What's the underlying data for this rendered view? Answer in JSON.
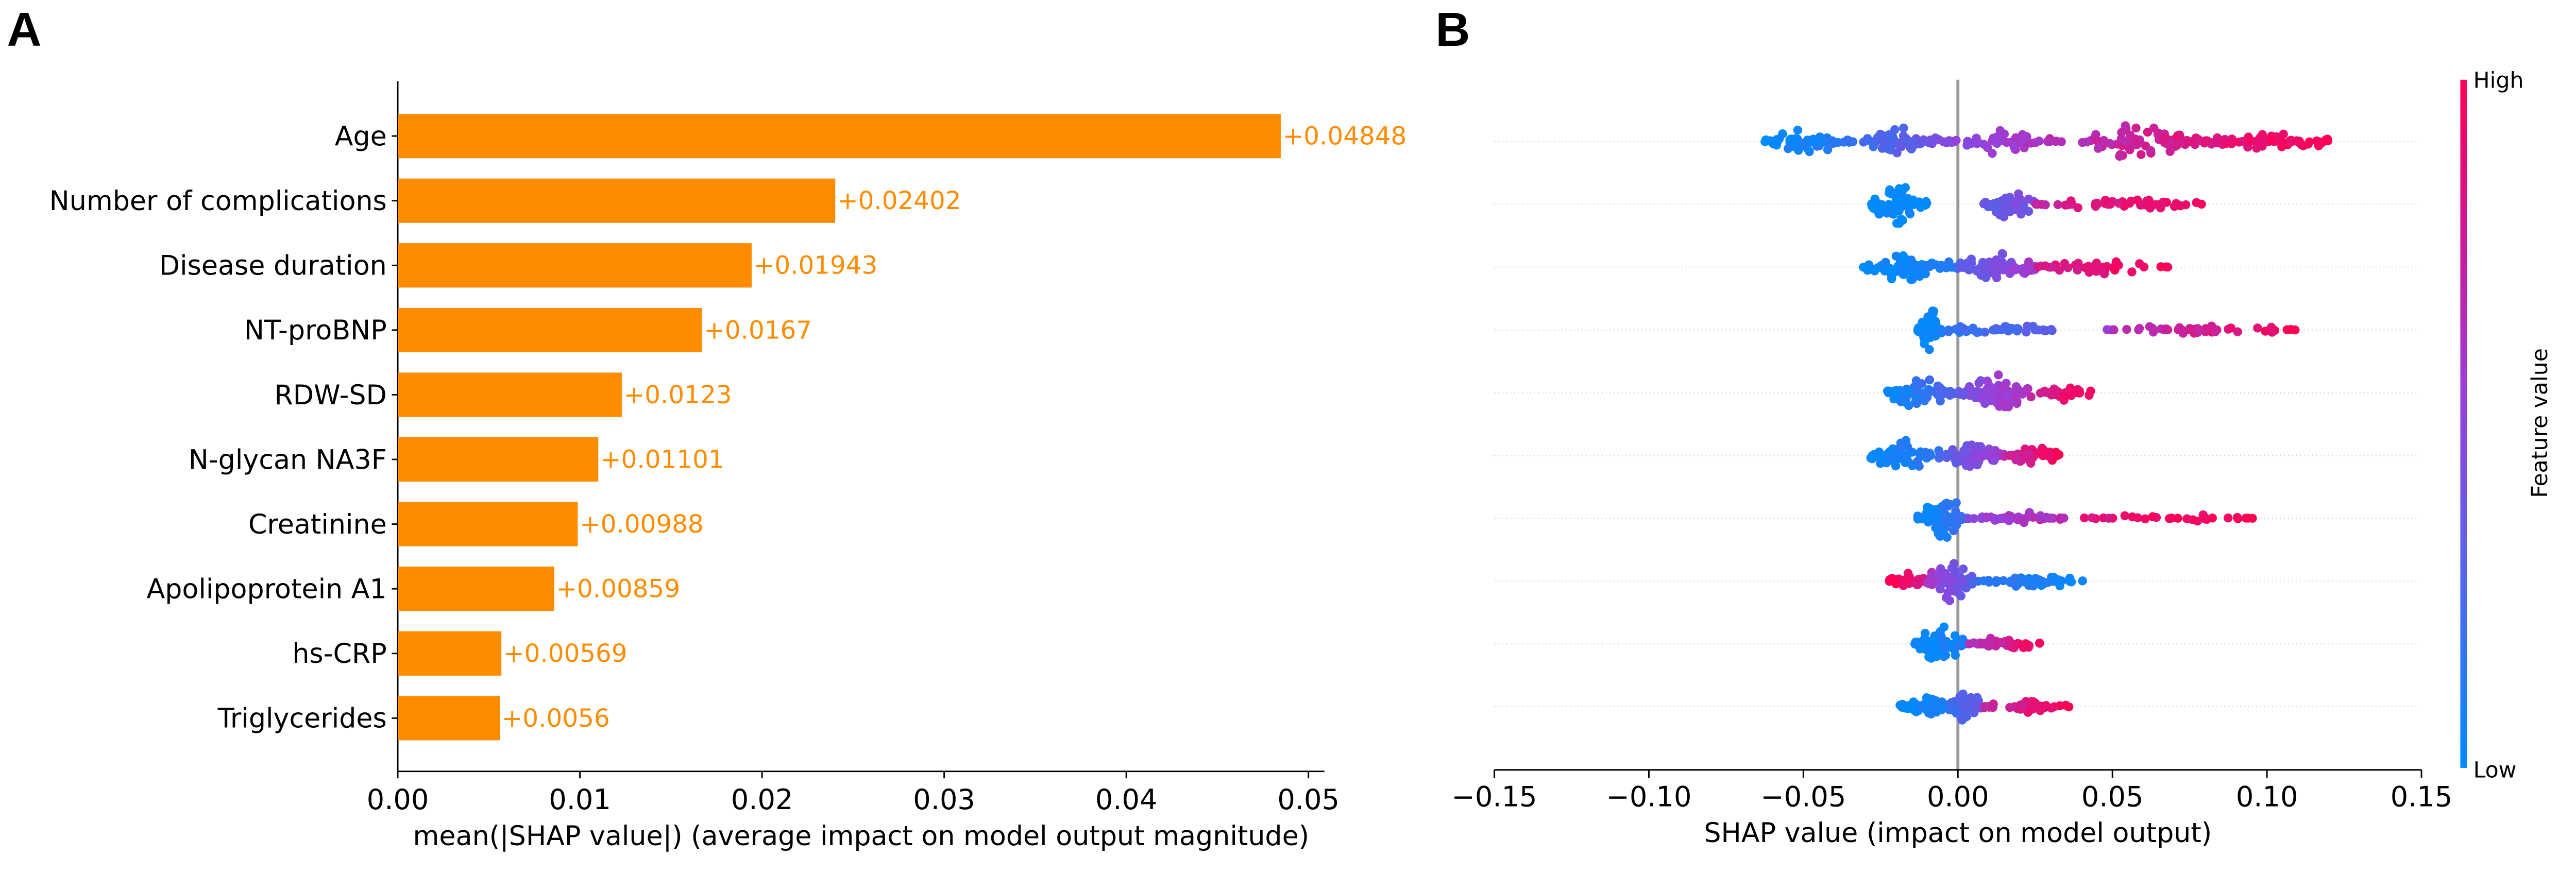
{
  "panels": {
    "left": "A",
    "right": "B"
  },
  "colors": {
    "bar": "#ff8c00",
    "low": "#008bfb",
    "high": "#ff0052"
  },
  "chart_data": [
    {
      "type": "bar",
      "orientation": "horizontal",
      "categories": [
        "Age",
        "Number of complications",
        "Disease duration",
        "NT-proBNP",
        "RDW-SD",
        "N-glycan NA3F",
        "Creatinine",
        "Apolipoprotein A1",
        "hs-CRP",
        "Triglycerides"
      ],
      "values": [
        0.04848,
        0.02402,
        0.01943,
        0.0167,
        0.0123,
        0.01101,
        0.00988,
        0.00859,
        0.00569,
        0.0056
      ],
      "value_labels": [
        "+0.04848",
        "+0.02402",
        "+0.01943",
        "+0.0167",
        "+0.0123",
        "+0.01101",
        "+0.00988",
        "+0.00859",
        "+0.00569",
        "+0.0056"
      ],
      "xlabel": "mean(|SHAP value|) (average impact on model output magnitude)",
      "xlim": [
        0,
        0.051
      ],
      "xticks": [
        "0.00",
        "0.01",
        "0.02",
        "0.03",
        "0.04",
        "0.05"
      ],
      "xtick_values": [
        0,
        0.01,
        0.02,
        0.03,
        0.04,
        0.05
      ],
      "grid": false
    },
    {
      "type": "scatter",
      "subtype": "beeswarm",
      "xlabel": "SHAP value (impact on model output)",
      "xlim": [
        -0.15,
        0.15
      ],
      "xticks": [
        "−0.15",
        "−0.10",
        "−0.05",
        "0.00",
        "0.05",
        "0.10",
        "0.15"
      ],
      "xtick_values": [
        -0.15,
        -0.1,
        -0.05,
        0,
        0.05,
        0.1,
        0.15
      ],
      "colorbar": {
        "label": "Feature value",
        "high": "High",
        "low": "Low"
      },
      "rows_note_fields": [
        "shap_from",
        "shap_to",
        "points",
        "feature_value_from",
        "feature_value_to",
        "density"
      ],
      "rows": [
        {
          "feature": "Age",
          "clusters": [
            [
              -0.063,
              -0.035,
              60,
              0,
              0.15,
              0.8
            ],
            [
              -0.035,
              -0.005,
              60,
              0.2,
              0.4,
              0.7
            ],
            [
              -0.005,
              0.035,
              50,
              0.45,
              0.7,
              0.6
            ],
            [
              0.04,
              0.08,
              80,
              0.7,
              0.85,
              0.9
            ],
            [
              0.08,
              0.122,
              70,
              0.85,
              1,
              0.55
            ]
          ]
        },
        {
          "feature": "Number of complications",
          "clusters": [
            [
              -0.028,
              -0.01,
              80,
              0,
              0,
              1.0
            ],
            [
              0.008,
              0.025,
              50,
              0.35,
              0.45,
              0.8
            ],
            [
              0.025,
              0.082,
              50,
              0.75,
              1,
              0.3
            ]
          ]
        },
        {
          "feature": "Disease duration",
          "clusters": [
            [
              -0.031,
              0.0,
              70,
              0,
              0.1,
              0.8
            ],
            [
              0.0,
              0.025,
              80,
              0.3,
              0.6,
              0.9
            ],
            [
              0.025,
              0.068,
              40,
              0.8,
              1,
              0.35
            ]
          ]
        },
        {
          "feature": "NT-proBNP",
          "clusters": [
            [
              -0.013,
              -0.005,
              60,
              0,
              0.05,
              1.0
            ],
            [
              -0.005,
              0.032,
              40,
              0.15,
              0.35,
              0.3
            ],
            [
              0.048,
              0.113,
              50,
              0.6,
              1,
              0.22
            ]
          ]
        },
        {
          "feature": "RDW-SD",
          "clusters": [
            [
              -0.024,
              0.0,
              70,
              0,
              0.3,
              0.8
            ],
            [
              0.0,
              0.025,
              80,
              0.4,
              0.7,
              0.85
            ],
            [
              0.025,
              0.046,
              30,
              0.8,
              1,
              0.35
            ]
          ]
        },
        {
          "feature": "N-glycan NA3F",
          "clusters": [
            [
              -0.029,
              -0.005,
              60,
              0,
              0.2,
              0.8
            ],
            [
              -0.005,
              0.015,
              70,
              0.3,
              0.6,
              0.75
            ],
            [
              0.015,
              0.033,
              50,
              0.7,
              1,
              0.5
            ]
          ]
        },
        {
          "feature": "Creatinine",
          "clusters": [
            [
              -0.013,
              0.003,
              80,
              0,
              0.2,
              1.0
            ],
            [
              0.003,
              0.035,
              50,
              0.5,
              0.7,
              0.28
            ],
            [
              0.04,
              0.097,
              30,
              0.85,
              1,
              0.2
            ]
          ]
        },
        {
          "feature": "Apolipoprotein A1",
          "clusters": [
            [
              -0.023,
              -0.01,
              40,
              1,
              0.8,
              0.4
            ],
            [
              -0.01,
              0.005,
              80,
              0.6,
              0.3,
              1.0
            ],
            [
              0.005,
              0.043,
              50,
              0.2,
              0,
              0.32
            ]
          ]
        },
        {
          "feature": "hs-CRP",
          "clusters": [
            [
              -0.014,
              0.003,
              80,
              0,
              0.1,
              0.9
            ],
            [
              0.003,
              0.027,
              40,
              0.6,
              1,
              0.32
            ]
          ]
        },
        {
          "feature": "Triglycerides",
          "clusters": [
            [
              -0.019,
              0.0,
              60,
              0,
              0.1,
              0.5
            ],
            [
              -0.003,
              0.008,
              50,
              0.2,
              0.4,
              0.9
            ],
            [
              0.008,
              0.036,
              40,
              0.7,
              1,
              0.32
            ]
          ]
        }
      ]
    }
  ]
}
